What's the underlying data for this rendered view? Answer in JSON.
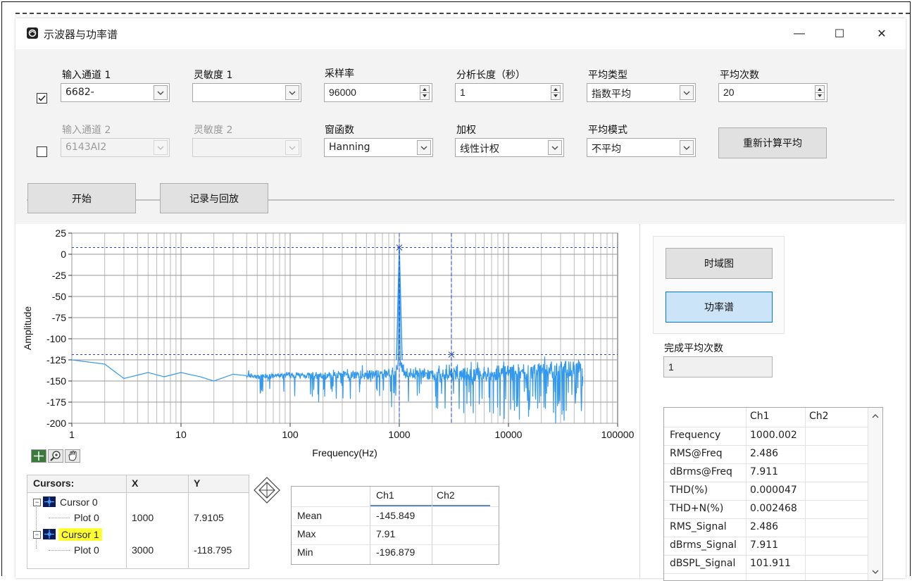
{
  "window": {
    "title": "示波器与功率谱",
    "minimize": "—",
    "maximize": "☐",
    "close": "✕"
  },
  "channel1": {
    "label": "输入通道 1",
    "value": "6682-",
    "checked": true
  },
  "sensitivity1": {
    "label": "灵敏度 1",
    "value": ""
  },
  "sample_rate": {
    "label": "采样率",
    "value": "96000"
  },
  "analysis_length": {
    "label": "分析长度（秒）",
    "value": "1"
  },
  "avg_type": {
    "label": "平均类型",
    "value": "指数平均"
  },
  "avg_count": {
    "label": "平均次数",
    "value": "20"
  },
  "channel2": {
    "label": "输入通道 2",
    "value": "6143AI2",
    "checked": false
  },
  "sensitivity2": {
    "label": "灵敏度 2",
    "value": ""
  },
  "window_fn": {
    "label": "窗函数",
    "value": "Hanning"
  },
  "weighting": {
    "label": "加权",
    "value": "线性计权"
  },
  "avg_mode": {
    "label": "平均模式",
    "value": "不平均"
  },
  "recalc_button": "重新计算平均",
  "start_button": "开始",
  "record_button": "记录与回放",
  "view_buttons": {
    "time": "时域图",
    "spectrum": "功率谱"
  },
  "completed_avg": {
    "label": "完成平均次数",
    "value": "1"
  },
  "chart_data": {
    "type": "line",
    "title": "",
    "xlabel": "Frequency(Hz)",
    "ylabel": "Amplitude",
    "xscale": "log",
    "xlim": [
      1,
      100000
    ],
    "ylim": [
      -200,
      25
    ],
    "xticks": [
      "1",
      "10",
      "100",
      "1000",
      "10000",
      "100000"
    ],
    "yticks": [
      "25",
      "0",
      "-25",
      "-50",
      "-75",
      "-100",
      "-125",
      "-150",
      "-175",
      "-200"
    ],
    "grid": true,
    "color": "#3399ee",
    "series": [
      {
        "x": [
          1,
          2,
          3,
          5,
          7,
          10,
          15,
          20,
          30,
          50,
          100,
          200,
          300,
          500,
          700,
          900,
          980,
          1000,
          1020,
          1100,
          1500,
          2000,
          3000,
          5000,
          10000,
          20000,
          30000,
          48000
        ],
        "y": [
          -125,
          -130,
          -147,
          -140,
          -145,
          -140,
          -145,
          -150,
          -142,
          -145,
          -143,
          -144,
          -142,
          -143,
          -142,
          -140,
          -130,
          7.91,
          -130,
          -140,
          -142,
          -143,
          -142,
          -142,
          -140,
          -138,
          -137,
          -135
        ]
      }
    ],
    "cursors": [
      {
        "x": 1000,
        "y": 7.9105
      },
      {
        "x": 3000,
        "y": -118.795
      }
    ]
  },
  "plot_tools": [
    "cursor-tool",
    "zoom-tool",
    "pan-tool"
  ],
  "cursors_table": {
    "headers": [
      "Cursors:",
      "X",
      "Y"
    ],
    "rows": [
      {
        "name": "Cursor 0",
        "plot": "Plot 0",
        "x": "1000",
        "y": "7.9105",
        "highlight": false
      },
      {
        "name": "Cursor 1",
        "plot": "Plot 0",
        "x": "3000",
        "y": "-118.795",
        "highlight": true
      }
    ]
  },
  "stats_table": {
    "headers": [
      "",
      "Ch1",
      "Ch2"
    ],
    "rows": [
      {
        "label": "Mean",
        "ch1": "-145.849",
        "ch2": ""
      },
      {
        "label": "Max",
        "ch1": "7.91",
        "ch2": ""
      },
      {
        "label": "Min",
        "ch1": "-196.879",
        "ch2": ""
      }
    ]
  },
  "measure_table": {
    "headers": [
      "",
      "Ch1",
      "Ch2"
    ],
    "rows": [
      {
        "label": "Frequency",
        "ch1": "1000.002",
        "ch2": ""
      },
      {
        "label": "RMS@Freq",
        "ch1": "2.486",
        "ch2": ""
      },
      {
        "label": "dBrms@Freq",
        "ch1": "7.911",
        "ch2": ""
      },
      {
        "label": "THD(%)",
        "ch1": "0.000047",
        "ch2": ""
      },
      {
        "label": "THD+N(%)",
        "ch1": "0.002468",
        "ch2": ""
      },
      {
        "label": "RMS_Signal",
        "ch1": "2.486",
        "ch2": ""
      },
      {
        "label": "dBrms_Signal",
        "ch1": "7.911",
        "ch2": ""
      },
      {
        "label": "dBSPL_Signal",
        "ch1": "101.911",
        "ch2": ""
      }
    ]
  }
}
